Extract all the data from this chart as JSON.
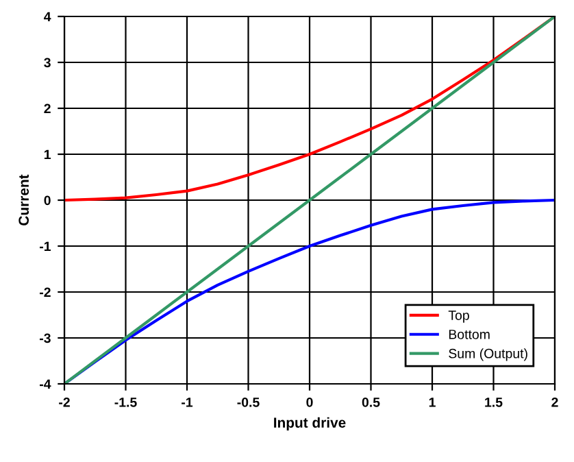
{
  "chart_data": {
    "type": "line",
    "xlabel": "Input drive",
    "ylabel": "Current",
    "x": [
      -2,
      -1.75,
      -1.5,
      -1.25,
      -1,
      -0.75,
      -0.5,
      -0.25,
      0,
      0.25,
      0.5,
      0.75,
      1,
      1.25,
      1.5,
      1.75,
      2
    ],
    "series": [
      {
        "name": "Top",
        "color": "#ff0000",
        "values": [
          0,
          0.02,
          0.05,
          0.12,
          0.2,
          0.35,
          0.55,
          0.77,
          1,
          1.27,
          1.55,
          1.85,
          2.2,
          2.62,
          3.05,
          3.52,
          4
        ]
      },
      {
        "name": "Bottom",
        "color": "#0000ff",
        "values": [
          -4,
          -3.52,
          -3.05,
          -2.62,
          -2.2,
          -1.85,
          -1.55,
          -1.27,
          -1,
          -0.77,
          -0.55,
          -0.35,
          -0.2,
          -0.12,
          -0.05,
          -0.02,
          0
        ]
      },
      {
        "name": "Sum (Output)",
        "color": "#339966",
        "values": [
          -4,
          -3.5,
          -3,
          -2.5,
          -2,
          -1.5,
          -1,
          -0.5,
          0,
          0.5,
          1,
          1.5,
          2,
          2.5,
          3,
          3.5,
          4
        ]
      }
    ],
    "xlim": [
      -2,
      2
    ],
    "ylim": [
      -4,
      4
    ],
    "xticks": [
      -2,
      -1.5,
      -1,
      -0.5,
      0,
      0.5,
      1,
      1.5,
      2
    ],
    "yticks": [
      -4,
      -3,
      -2,
      -1,
      0,
      1,
      2,
      3,
      4
    ],
    "grid": true,
    "legend": "bottom right",
    "marker": "none",
    "line_style": "solid"
  }
}
